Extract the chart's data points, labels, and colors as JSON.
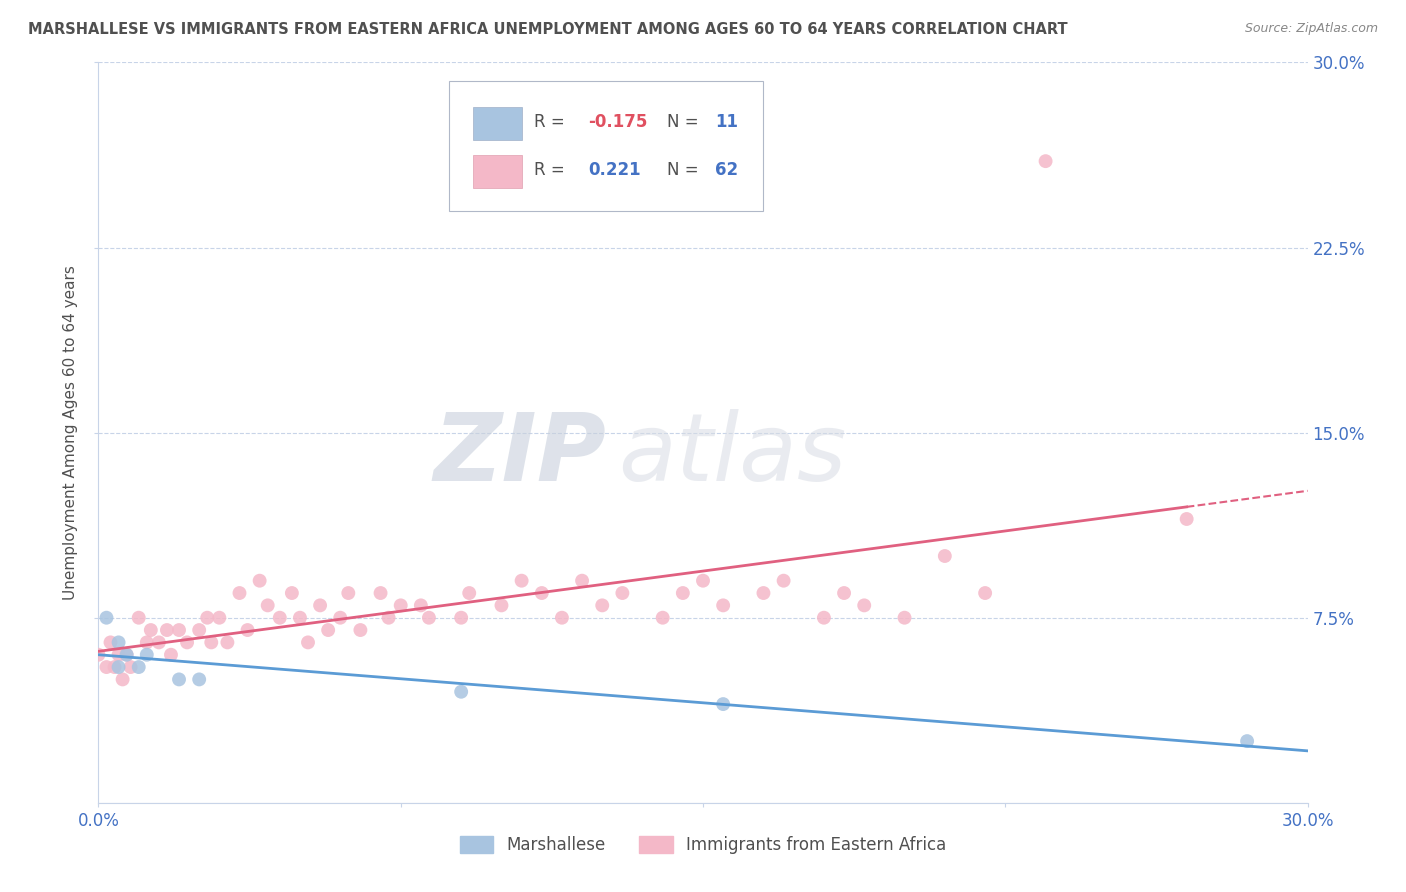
{
  "title": "MARSHALLESE VS IMMIGRANTS FROM EASTERN AFRICA UNEMPLOYMENT AMONG AGES 60 TO 64 YEARS CORRELATION CHART",
  "source": "Source: ZipAtlas.com",
  "ylabel": "Unemployment Among Ages 60 to 64 years",
  "xlim": [
    0.0,
    0.3
  ],
  "ylim": [
    0.0,
    0.3
  ],
  "xticks": [
    0.0,
    0.075,
    0.15,
    0.225,
    0.3
  ],
  "xtick_labels": [
    "0.0%",
    "",
    "",
    "",
    "30.0%"
  ],
  "yticks": [
    0.075,
    0.15,
    0.225,
    0.3
  ],
  "ytick_labels": [
    "7.5%",
    "15.0%",
    "22.5%",
    "30.0%"
  ],
  "watermark_top": "ZIP",
  "watermark_bot": "atlas",
  "marshallese": {
    "name": "Marshallese",
    "R": -0.175,
    "N": 11,
    "dot_color": "#a8c4e0",
    "line_color": "#5b9bd5",
    "x": [
      0.002,
      0.005,
      0.005,
      0.007,
      0.01,
      0.012,
      0.02,
      0.025,
      0.09,
      0.155,
      0.285
    ],
    "y": [
      0.075,
      0.065,
      0.055,
      0.06,
      0.055,
      0.06,
      0.05,
      0.05,
      0.045,
      0.04,
      0.025
    ]
  },
  "eastern_africa": {
    "name": "Immigrants from Eastern Africa",
    "R": 0.221,
    "N": 62,
    "dot_color": "#f4b8c8",
    "line_color": "#e06080",
    "x": [
      0.0,
      0.002,
      0.003,
      0.004,
      0.005,
      0.006,
      0.007,
      0.008,
      0.01,
      0.012,
      0.013,
      0.015,
      0.017,
      0.018,
      0.02,
      0.022,
      0.025,
      0.027,
      0.028,
      0.03,
      0.032,
      0.035,
      0.037,
      0.04,
      0.042,
      0.045,
      0.048,
      0.05,
      0.052,
      0.055,
      0.057,
      0.06,
      0.062,
      0.065,
      0.07,
      0.072,
      0.075,
      0.08,
      0.082,
      0.09,
      0.092,
      0.1,
      0.105,
      0.11,
      0.115,
      0.12,
      0.125,
      0.13,
      0.14,
      0.145,
      0.15,
      0.155,
      0.165,
      0.17,
      0.18,
      0.185,
      0.19,
      0.2,
      0.21,
      0.22,
      0.235,
      0.27
    ],
    "y": [
      0.06,
      0.055,
      0.065,
      0.055,
      0.06,
      0.05,
      0.06,
      0.055,
      0.075,
      0.065,
      0.07,
      0.065,
      0.07,
      0.06,
      0.07,
      0.065,
      0.07,
      0.075,
      0.065,
      0.075,
      0.065,
      0.085,
      0.07,
      0.09,
      0.08,
      0.075,
      0.085,
      0.075,
      0.065,
      0.08,
      0.07,
      0.075,
      0.085,
      0.07,
      0.085,
      0.075,
      0.08,
      0.08,
      0.075,
      0.075,
      0.085,
      0.08,
      0.09,
      0.085,
      0.075,
      0.09,
      0.08,
      0.085,
      0.075,
      0.085,
      0.09,
      0.08,
      0.085,
      0.09,
      0.075,
      0.085,
      0.08,
      0.075,
      0.1,
      0.085,
      0.26,
      0.115
    ]
  },
  "legend_box_color_blue": "#a8c4e0",
  "legend_box_color_pink": "#f4b8c8",
  "legend_R_neg_color": "#e05060",
  "legend_R_pos_color": "#4472c4",
  "legend_N_color": "#4472c4",
  "background_color": "#ffffff",
  "grid_color": "#c8d4e8",
  "title_color": "#505050",
  "ylabel_color": "#505050",
  "tick_color": "#4472c4",
  "watermark_color": "#d4dce8",
  "spine_color": "#c8d4e8"
}
